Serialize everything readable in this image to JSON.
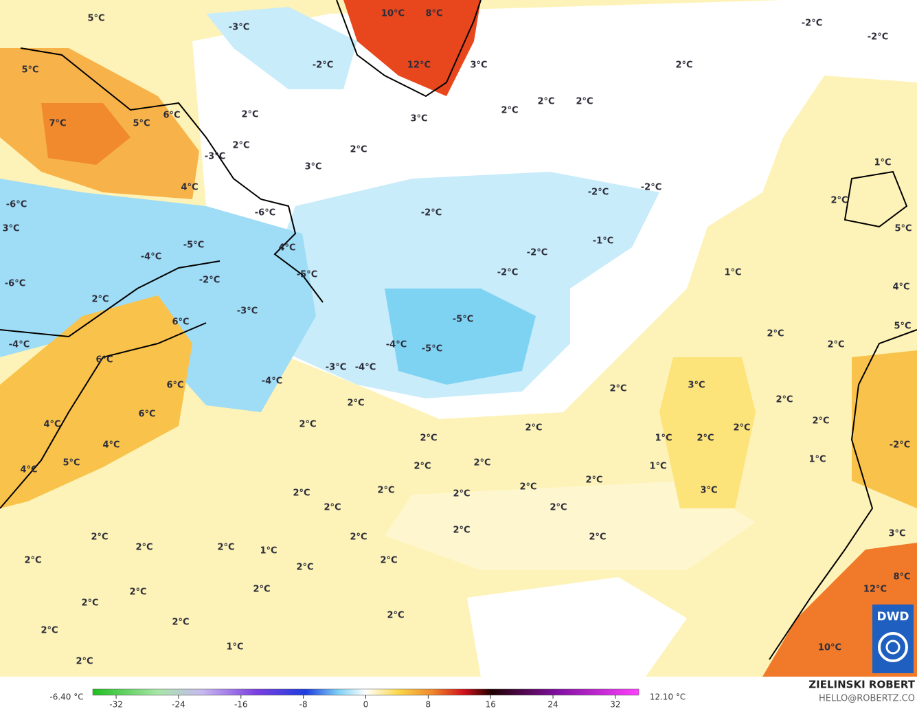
{
  "map": {
    "labels": [
      "5°C",
      "-3°C",
      "10°C",
      "8°C",
      "-2°C",
      "-2°C",
      "5°C",
      "-2°C",
      "12°C",
      "3°C",
      "2°C",
      "7°C",
      "5°C",
      "6°C",
      "2°C",
      "2°C",
      "2°C",
      "2°C",
      "3°C",
      "2°C",
      "2°C",
      "-3°C",
      "3°C",
      "1°C",
      "4°C",
      "-2°C",
      "-2°C",
      "2°C",
      "-6°C",
      "-6°C",
      "-2°C",
      "3°C",
      "5°C",
      "-5°C",
      "-1°C",
      "-4°C",
      "4°C",
      "-2°C",
      "-2°C",
      "1°C",
      "-2°C",
      "-5°C",
      "-6°C",
      "4°C",
      "2°C",
      "-3°C",
      "6°C",
      "-5°C",
      "5°C",
      "2°C",
      "-4°C",
      "-4°C",
      "-5°C",
      "2°C",
      "6°C",
      "-3°C",
      "-4°C",
      "-4°C",
      "6°C",
      "2°C",
      "3°C",
      "2°C",
      "2°C",
      "6°C",
      "2°C",
      "2°C",
      "4°C",
      "2°C",
      "2°C",
      "1°C",
      "2°C",
      "2°C",
      "-2°C",
      "4°C",
      "5°C",
      "2°C",
      "2°C",
      "1°C",
      "1°C",
      "4°C",
      "2°C",
      "2°C",
      "2°C",
      "2°C",
      "2°C",
      "3°C",
      "2°C",
      "2°C",
      "2°C",
      "2°C",
      "2°C",
      "1°C",
      "2°C",
      "2°C",
      "2°C",
      "3°C",
      "2°C",
      "2°C",
      "2°C",
      "8°C",
      "2°C",
      "2°C",
      "12°C",
      "2°C",
      "2°C",
      "2°C",
      "2°C",
      "1°C",
      "10°C",
      "2°C"
    ],
    "colorbar": {
      "min_label": "-6.40 °C",
      "max_label": "12.10 °C",
      "lim": [
        -35,
        35
      ],
      "ticks": [
        -32,
        -24,
        -16,
        -8,
        0,
        8,
        16,
        24,
        32
      ]
    },
    "author": "ZIELINSKI ROBERT",
    "contact": "HELLO@ROBERTZ.CO",
    "logo": "DWD"
  }
}
